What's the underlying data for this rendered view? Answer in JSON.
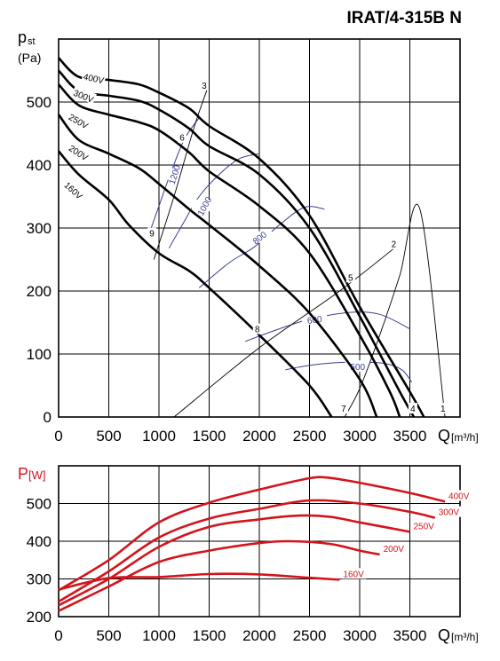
{
  "title": "IRAT/4-315B N",
  "colors": {
    "pressure": "#000000",
    "rpm": "#3a3f8f",
    "power": "#d4141c",
    "grid": "#000000"
  },
  "chart_data": [
    {
      "type": "line",
      "name": "pressure",
      "ylabel_main": "p",
      "ylabel_sub": "st",
      "yunit": "(Pa)",
      "xlabel": "Q",
      "xunit": "[m³/h]",
      "xlim": [
        0,
        4000
      ],
      "ylim": [
        0,
        600
      ],
      "xticks": [
        "0",
        "500",
        "1000",
        "1500",
        "2000",
        "2500",
        "3000",
        "3500"
      ],
      "yticks": [
        "0",
        "100",
        "200",
        "300",
        "400",
        "500"
      ],
      "grid": true,
      "series": [
        {
          "name": "400V",
          "points": [
            [
              0,
              570
            ],
            [
              200,
              540
            ],
            [
              500,
              535
            ],
            [
              800,
              528
            ],
            [
              1000,
              515
            ],
            [
              1300,
              490
            ],
            [
              1500,
              462
            ],
            [
              2000,
              410
            ],
            [
              2500,
              320
            ],
            [
              3000,
              175
            ],
            [
              3500,
              40
            ],
            [
              3640,
              0
            ]
          ]
        },
        {
          "name": "300V",
          "points": [
            [
              0,
              550
            ],
            [
              200,
              518
            ],
            [
              500,
              510
            ],
            [
              800,
              502
            ],
            [
              1000,
              488
            ],
            [
              1300,
              458
            ],
            [
              1500,
              430
            ],
            [
              2000,
              385
            ],
            [
              2500,
              300
            ],
            [
              3000,
              160
            ],
            [
              3400,
              40
            ],
            [
              3540,
              0
            ]
          ]
        },
        {
          "name": "250V",
          "points": [
            [
              0,
              528
            ],
            [
              200,
              495
            ],
            [
              500,
              480
            ],
            [
              800,
              468
            ],
            [
              1000,
              455
            ],
            [
              1300,
              420
            ],
            [
              1500,
              390
            ],
            [
              2000,
              335
            ],
            [
              2500,
              260
            ],
            [
              3000,
              130
            ],
            [
              3300,
              40
            ],
            [
              3400,
              0
            ]
          ]
        },
        {
          "name": "200V",
          "points": [
            [
              0,
              480
            ],
            [
              200,
              440
            ],
            [
              500,
              418
            ],
            [
              800,
              395
            ],
            [
              1000,
              370
            ],
            [
              1300,
              330
            ],
            [
              1500,
              305
            ],
            [
              2000,
              240
            ],
            [
              2500,
              165
            ],
            [
              3000,
              60
            ],
            [
              3170,
              0
            ]
          ]
        },
        {
          "name": "160V",
          "points": [
            [
              0,
              422
            ],
            [
              200,
              385
            ],
            [
              500,
              345
            ],
            [
              700,
              305
            ],
            [
              1000,
              260
            ],
            [
              1300,
              232
            ],
            [
              1500,
              205
            ],
            [
              2000,
              130
            ],
            [
              2500,
              50
            ],
            [
              2720,
              0
            ]
          ]
        }
      ],
      "system_curves": [
        {
          "name": "1",
          "points": [
            [
              2850,
              0
            ],
            [
              3000,
              45
            ],
            [
              3200,
              130
            ],
            [
              3400,
              225
            ],
            [
              3600,
              330
            ],
            [
              3850,
              0
            ]
          ]
        },
        {
          "name": "2",
          "points": [
            [
              1150,
              0
            ],
            [
              2000,
              110
            ],
            [
              2800,
              200
            ],
            [
              3360,
              270
            ]
          ]
        },
        {
          "name": "3",
          "points": [
            [
              950,
              250
            ],
            [
              1150,
              350
            ],
            [
              1350,
              460
            ],
            [
              1480,
              520
            ]
          ]
        }
      ],
      "rpm_curves": [
        {
          "label": "500",
          "points": [
            [
              2260,
              75
            ],
            [
              2500,
              82
            ],
            [
              2750,
              86
            ],
            [
              3000,
              87
            ],
            [
              3250,
              85
            ],
            [
              3420,
              75
            ],
            [
              3520,
              55
            ]
          ]
        },
        {
          "label": "600",
          "points": [
            [
              1860,
              120
            ],
            [
              2200,
              140
            ],
            [
              2500,
              155
            ],
            [
              2900,
              166
            ],
            [
              3200,
              163
            ],
            [
              3500,
              140
            ]
          ]
        },
        {
          "label": "800",
          "points": [
            [
              1400,
              205
            ],
            [
              1700,
              245
            ],
            [
              1950,
              270
            ],
            [
              2200,
              305
            ],
            [
              2450,
              333
            ],
            [
              2650,
              330
            ]
          ]
        },
        {
          "label": "1000",
          "points": [
            [
              1100,
              268
            ],
            [
              1250,
              310
            ],
            [
              1400,
              350
            ],
            [
              1600,
              385
            ],
            [
              1800,
              410
            ],
            [
              2000,
              418
            ]
          ]
        },
        {
          "label": "1200",
          "points": [
            [
              900,
              290
            ],
            [
              1000,
              335
            ],
            [
              1100,
              380
            ],
            [
              1250,
              440
            ],
            [
              1400,
              475
            ]
          ]
        }
      ],
      "point_labels": [
        {
          "label": "1",
          "x": 3830,
          "y": 7
        },
        {
          "label": "2",
          "x": 3340,
          "y": 268
        },
        {
          "label": "3",
          "x": 1450,
          "y": 520
        },
        {
          "label": "4",
          "x": 3530,
          "y": 7
        },
        {
          "label": "5",
          "x": 2910,
          "y": 215
        },
        {
          "label": "6",
          "x": 1230,
          "y": 437
        },
        {
          "label": "7",
          "x": 2840,
          "y": 7
        },
        {
          "label": "8",
          "x": 1980,
          "y": 133
        },
        {
          "label": "9",
          "x": 930,
          "y": 285
        }
      ]
    },
    {
      "type": "line",
      "name": "power",
      "ylabel_main": "P",
      "ylabel_sub": "[W]",
      "xlabel": "Q",
      "xunit": "[m³/h]",
      "xlim": [
        0,
        4000
      ],
      "ylim": [
        200,
        600
      ],
      "xticks": [
        "0",
        "500",
        "1000",
        "1500",
        "2000",
        "2500",
        "3000",
        "3500"
      ],
      "yticks": [
        "200",
        "300",
        "400",
        "500"
      ],
      "grid": true,
      "series": [
        {
          "name": "400V",
          "points": [
            [
              0,
              270
            ],
            [
              500,
              350
            ],
            [
              1000,
              450
            ],
            [
              1500,
              502
            ],
            [
              2000,
              537
            ],
            [
              2500,
              567
            ],
            [
              2700,
              568
            ],
            [
              3000,
              555
            ],
            [
              3500,
              528
            ],
            [
              3850,
              505
            ]
          ]
        },
        {
          "name": "300V",
          "points": [
            [
              0,
              240
            ],
            [
              500,
              320
            ],
            [
              1000,
              410
            ],
            [
              1500,
              460
            ],
            [
              2000,
              486
            ],
            [
              2500,
              508
            ],
            [
              3000,
              500
            ],
            [
              3500,
              478
            ],
            [
              3750,
              462
            ]
          ]
        },
        {
          "name": "250V",
          "points": [
            [
              0,
              230
            ],
            [
              500,
              300
            ],
            [
              1000,
              385
            ],
            [
              1500,
              438
            ],
            [
              2000,
              458
            ],
            [
              2400,
              468
            ],
            [
              2700,
              465
            ],
            [
              3000,
              450
            ],
            [
              3500,
              425
            ]
          ]
        },
        {
          "name": "200V",
          "points": [
            [
              0,
              215
            ],
            [
              500,
              280
            ],
            [
              1000,
              345
            ],
            [
              1500,
              375
            ],
            [
              2000,
              395
            ],
            [
              2300,
              400
            ],
            [
              2700,
              393
            ],
            [
              3000,
              375
            ],
            [
              3200,
              365
            ]
          ]
        },
        {
          "name": "160V",
          "points": [
            [
              0,
              272
            ],
            [
              500,
              302
            ],
            [
              1000,
              305
            ],
            [
              1500,
              313
            ],
            [
              2000,
              312
            ],
            [
              2500,
              303
            ],
            [
              2800,
              298
            ]
          ]
        }
      ]
    }
  ]
}
